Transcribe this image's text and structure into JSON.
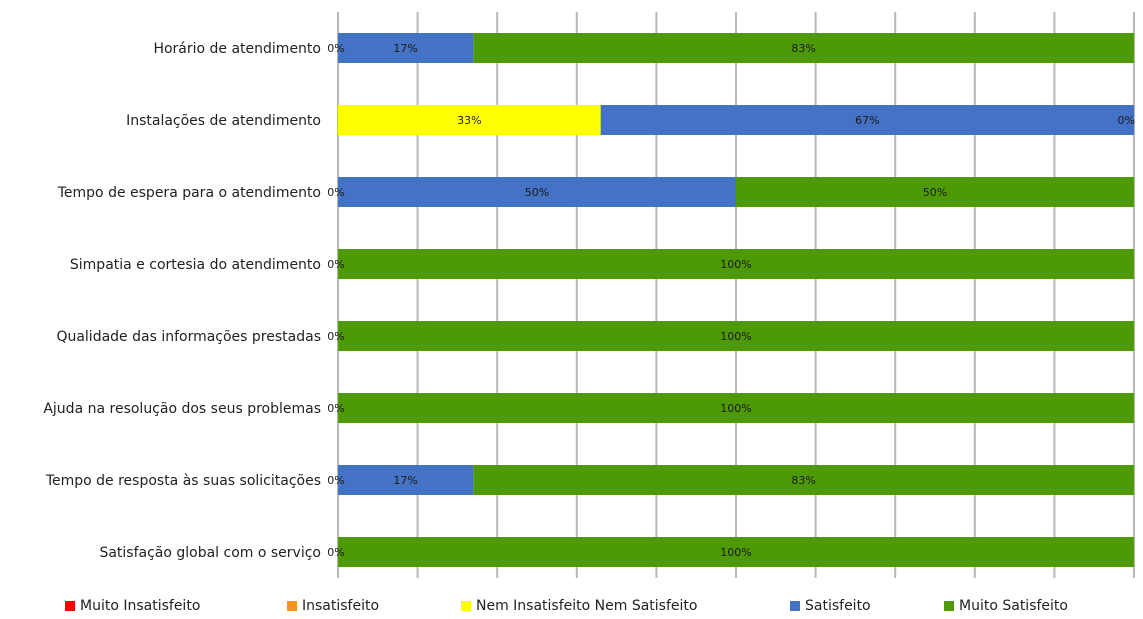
{
  "chart_data": {
    "type": "bar",
    "orientation": "horizontal",
    "stacked": true,
    "percent_stacked": true,
    "categories": [
      "Horário de atendimento",
      "Instalações de atendimento",
      "Tempo de espera para o atendimento",
      "Simpatia e cortesia do atendimento",
      "Qualidade das informações prestadas",
      "Ajuda na resolução dos seus problemas",
      "Tempo de resposta às suas solicitações",
      "Satisfação global com o serviço"
    ],
    "series": [
      {
        "name": "Muito Insatisfeito",
        "color": "#ff0000",
        "values": [
          0,
          0,
          0,
          0,
          0,
          0,
          0,
          0
        ]
      },
      {
        "name": "Insatisfeito",
        "color": "#f7931e",
        "values": [
          0,
          0,
          0,
          0,
          0,
          0,
          0,
          0
        ]
      },
      {
        "name": "Nem Insatisfeito Nem Satisfeito",
        "color": "#ffff00",
        "values": [
          0,
          33,
          0,
          0,
          0,
          0,
          0,
          0
        ]
      },
      {
        "name": "Satisfeito",
        "color": "#4472c4",
        "values": [
          17,
          67,
          50,
          0,
          0,
          0,
          17,
          0
        ]
      },
      {
        "name": "Muito Satisfeito",
        "color": "#4e9a06",
        "values": [
          83,
          0,
          50,
          100,
          100,
          100,
          83,
          100
        ]
      }
    ],
    "data_labels": [
      {
        "category": 0,
        "labels": [
          "0%",
          "17%",
          "83%"
        ]
      },
      {
        "category": 1,
        "labels": [
          "33%",
          "67%",
          "0%"
        ]
      },
      {
        "category": 2,
        "labels": [
          "0%",
          "50%",
          "50%"
        ]
      },
      {
        "category": 3,
        "labels": [
          "0%",
          "100%"
        ]
      },
      {
        "category": 4,
        "labels": [
          "0%",
          "100%"
        ]
      },
      {
        "category": 5,
        "labels": [
          "0%",
          "100%"
        ]
      },
      {
        "category": 6,
        "labels": [
          "0%",
          "17%",
          "83%"
        ]
      },
      {
        "category": 7,
        "labels": [
          "0%",
          "100%"
        ]
      }
    ],
    "xlim": [
      0,
      100
    ],
    "grid": true,
    "legend_position": "bottom",
    "title": "",
    "xlabel": "",
    "ylabel": ""
  }
}
